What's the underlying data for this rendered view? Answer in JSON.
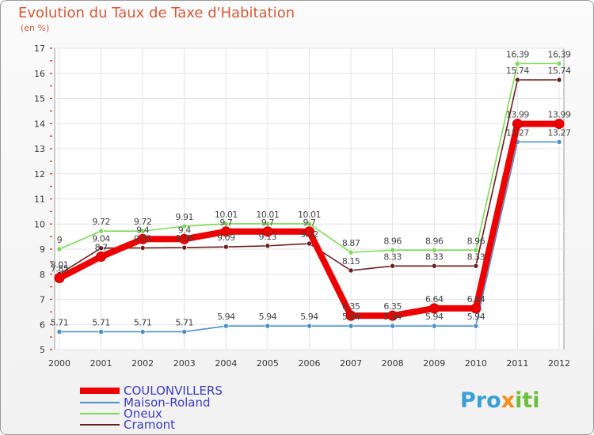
{
  "title": "Evolution du Taux de Taxe d'Habitation",
  "subtitle": "(en %)",
  "brand": {
    "parts": [
      "Pro",
      "x",
      "iti"
    ],
    "colors": [
      "#3a9fd6",
      "#f28c1b",
      "#6cbf3c"
    ]
  },
  "chart_data": {
    "type": "line",
    "categories": [
      "2000",
      "2001",
      "2002",
      "2003",
      "2004",
      "2005",
      "2006",
      "2007",
      "2008",
      "2009",
      "2010",
      "2011",
      "2012"
    ],
    "ylim": [
      5,
      17
    ],
    "yticks": [
      5,
      6,
      7,
      8,
      9,
      10,
      11,
      12,
      13,
      14,
      15,
      16,
      17
    ],
    "grid": true,
    "legend_position": "bottom-left",
    "series": [
      {
        "name": "COULONVILLERS",
        "color": "#ee0000",
        "emphasis": true,
        "values": [
          7.85,
          8.7,
          9.4,
          9.4,
          9.7,
          9.7,
          9.7,
          6.35,
          6.35,
          6.64,
          6.64,
          13.99,
          13.99
        ],
        "labels": [
          "7.85",
          "8.7",
          "9.4",
          "9.4",
          "9.7",
          "9.7",
          "9.7",
          "6.35",
          "6.35",
          "6.64",
          "6.64",
          "13.99",
          "13.99"
        ]
      },
      {
        "name": "Maison-Roland",
        "color": "#4b8fc9",
        "values": [
          5.71,
          5.71,
          5.71,
          5.71,
          5.94,
          5.94,
          5.94,
          5.94,
          5.94,
          5.94,
          5.94,
          13.27,
          13.27
        ],
        "labels": [
          "5.71",
          "5.71",
          "5.71",
          "5.71",
          "5.94",
          "5.94",
          "5.94",
          "5.94",
          "5.94",
          "5.94",
          "5.94",
          "13.27",
          "13.27"
        ]
      },
      {
        "name": "Oneux",
        "color": "#7ed957",
        "values": [
          9,
          9.72,
          9.72,
          9.91,
          10.01,
          10.01,
          10.01,
          8.87,
          8.96,
          8.96,
          8.96,
          16.39,
          16.39
        ],
        "labels": [
          "9",
          "9.72",
          "9.72",
          "9.91",
          "10.01",
          "10.01",
          "10.01",
          "8.87",
          "8.96",
          "8.96",
          "8.96",
          "16.39",
          "16.39"
        ]
      },
      {
        "name": "Cramont",
        "color": "#6a1d1d",
        "values": [
          8.01,
          9.04,
          9.05,
          9.06,
          9.09,
          9.13,
          9.22,
          8.15,
          8.33,
          8.33,
          8.33,
          15.74,
          15.74
        ],
        "labels": [
          "8.01",
          "9.04",
          "9.05",
          "9.06",
          "9.09",
          "9.13",
          "9.22",
          "8.15",
          "8.33",
          "8.33",
          "8.33",
          "15.74",
          "15.74"
        ]
      }
    ]
  }
}
